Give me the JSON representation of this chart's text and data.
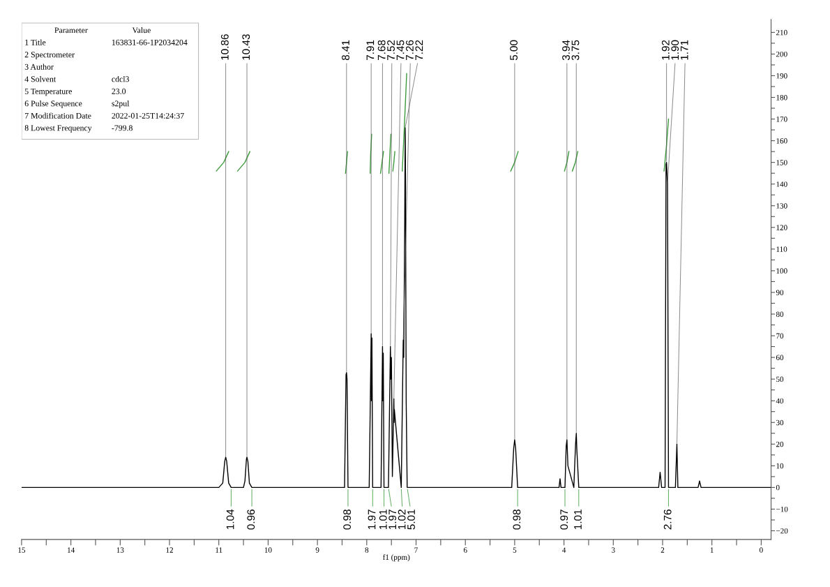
{
  "chart_data": {
    "type": "line",
    "xlabel": "f1 (ppm)",
    "xlim": [
      15,
      -0.2
    ],
    "ylim": [
      -24,
      216
    ],
    "xticks": [
      15,
      14,
      13,
      12,
      11,
      10,
      9,
      8,
      7,
      6,
      5,
      4,
      3,
      2,
      1,
      0,
      {
        "value": 14.5,
        "label": null
      },
      {
        "value": 13.5,
        "label": null
      },
      {
        "value": 12.5,
        "label": null
      },
      {
        "value": 11.5,
        "label": null
      },
      {
        "value": 10.5,
        "label": null
      },
      {
        "value": 9.5,
        "label": null
      },
      {
        "value": 8.5,
        "label": null
      },
      {
        "value": 7.5,
        "label": null
      },
      {
        "value": 6.5,
        "label": null
      },
      {
        "value": 5.5,
        "label": null
      },
      {
        "value": 4.5,
        "label": null
      },
      {
        "value": 3.5,
        "label": null
      },
      {
        "value": 2.5,
        "label": null
      },
      {
        "value": 1.5,
        "label": null
      },
      {
        "value": 0.5,
        "label": null
      }
    ],
    "yticks": [
      {
        "value": -20,
        "label": "−20"
      },
      {
        "value": -10,
        "label": "−10"
      },
      0,
      10,
      20,
      30,
      40,
      50,
      60,
      70,
      80,
      90,
      100,
      110,
      120,
      130,
      140,
      150,
      160,
      170,
      180,
      190,
      200,
      210,
      {
        "value": -15,
        "label": null
      },
      {
        "value": -5,
        "label": null
      },
      {
        "value": 5,
        "label": null
      },
      {
        "value": 15,
        "label": null
      },
      {
        "value": 25,
        "label": null
      },
      {
        "value": 35,
        "label": null
      },
      {
        "value": 45,
        "label": null
      },
      {
        "value": 55,
        "label": null
      },
      {
        "value": 65,
        "label": null
      },
      {
        "value": 75,
        "label": null
      },
      {
        "value": 85,
        "label": null
      },
      {
        "value": 95,
        "label": null
      },
      {
        "value": 105,
        "label": null
      },
      {
        "value": 115,
        "label": null
      },
      {
        "value": 125,
        "label": null
      },
      {
        "value": 135,
        "label": null
      },
      {
        "value": 145,
        "label": null
      },
      {
        "value": 155,
        "label": null
      },
      {
        "value": 165,
        "label": null
      },
      {
        "value": 175,
        "label": null
      },
      {
        "value": 185,
        "label": null
      },
      {
        "value": 195,
        "label": null
      },
      {
        "value": 205,
        "label": null
      }
    ],
    "grid": false,
    "legend": false,
    "series": [
      {
        "color": "#000000",
        "x": [
          15.0,
          11.0,
          10.92,
          10.88,
          10.86,
          10.84,
          10.8,
          10.75,
          10.5,
          10.47,
          10.44,
          10.43,
          10.41,
          10.38,
          10.33,
          8.45,
          8.42,
          8.41,
          8.4,
          8.38,
          7.95,
          7.91,
          7.905,
          7.895,
          7.88,
          7.71,
          7.68,
          7.675,
          7.665,
          7.65,
          7.56,
          7.52,
          7.51,
          7.5,
          7.48,
          7.45,
          7.445,
          7.44,
          7.3,
          7.26,
          7.25,
          7.23,
          7.22,
          7.215,
          7.2,
          7.18,
          5.06,
          5.02,
          5.0,
          4.98,
          4.94,
          4.1,
          4.08,
          4.06,
          3.98,
          3.955,
          3.94,
          3.92,
          3.8,
          3.765,
          3.75,
          3.74,
          3.7,
          2.08,
          2.05,
          2.02,
          1.95,
          1.93,
          1.92,
          1.9,
          1.88,
          1.74,
          1.71,
          1.69,
          1.28,
          1.25,
          1.22,
          -0.2
        ],
        "values": [
          0,
          0,
          2,
          12,
          14,
          12,
          2,
          0,
          0,
          3,
          13,
          14,
          12,
          2,
          0,
          0,
          52,
          53,
          50,
          0,
          0,
          71,
          40,
          69,
          0,
          0,
          65,
          40,
          62,
          0,
          0,
          65,
          50,
          60,
          5,
          41,
          30,
          36,
          0,
          68,
          60,
          120,
          166,
          150,
          40,
          0,
          0,
          18,
          22,
          18,
          0,
          0,
          4,
          0,
          0,
          19,
          22,
          10,
          0,
          20,
          25,
          18,
          0,
          0,
          7,
          0,
          0,
          149,
          150,
          140,
          0,
          0,
          20,
          0,
          0,
          3,
          0,
          0
        ]
      },
      {
        "color": "#3c9a3c",
        "x": [
          11.05,
          10.9,
          10.8,
          null,
          10.62,
          10.47,
          10.37,
          null,
          8.43,
          8.41,
          8.39,
          null,
          7.93,
          7.92,
          7.9,
          null,
          7.72,
          7.69,
          7.66,
          null,
          7.55,
          7.53,
          7.51,
          null,
          7.47,
          7.45,
          7.43,
          null,
          7.28,
          7.24,
          7.19,
          null,
          5.08,
          5.0,
          4.93,
          null,
          3.99,
          3.94,
          3.9,
          null,
          3.83,
          3.77,
          3.72,
          null,
          1.97,
          1.92,
          1.88
        ],
        "values": [
          146,
          150,
          155,
          null,
          146,
          150,
          155,
          null,
          145,
          150,
          155,
          null,
          145,
          154,
          163,
          null,
          145,
          150,
          155,
          null,
          145,
          154,
          163,
          null,
          146,
          150,
          155,
          null,
          146,
          165,
          191,
          null,
          146,
          150,
          155,
          null,
          146,
          150,
          155,
          null,
          146,
          150,
          155,
          null,
          146,
          158,
          170
        ]
      }
    ],
    "annotations": [
      "Parameter\tValue",
      "1 Title\t163831-66-1P2034204",
      "2 Spectrometer",
      "3 Author",
      "4 Solvent\tcdcl3",
      "5 Temperature\t23.0",
      "6 Pulse Sequence\ts2pul",
      "7 Modification Date\t2022-01-25T14:24:37",
      "8 Lowest Frequency\t-799.8",
      {
        "text": "10.86",
        "x": 10.86,
        "y": 14
      },
      {
        "text": "10.43",
        "x": 10.43,
        "y": 14
      },
      {
        "text": "8.41",
        "x": 8.41,
        "y": 53
      },
      {
        "text": "7.91",
        "x": 7.91,
        "y": 71
      },
      {
        "text": "7.68",
        "x": 7.68,
        "y": 65
      },
      {
        "text": "7.52",
        "x": 7.52,
        "y": 65
      },
      {
        "text": "7.45",
        "x": 7.45,
        "y": 41
      },
      {
        "text": "7.26",
        "x": 7.26,
        "y": 68
      },
      {
        "text": "7.22",
        "x": 7.22,
        "y": 166
      },
      {
        "text": "5.00",
        "x": 5.0,
        "y": 22
      },
      {
        "text": "3.94",
        "x": 3.94,
        "y": 22
      },
      {
        "text": "3.75",
        "x": 3.75,
        "y": 25
      },
      {
        "text": "1.92",
        "x": 1.92,
        "y": 150
      },
      {
        "text": "1.90",
        "x": 1.9,
        "y": 140
      },
      {
        "text": "1.71",
        "x": 1.71,
        "y": 20
      },
      {
        "text": "1.04",
        "x": 10.75,
        "y": 0
      },
      {
        "text": "0.96",
        "x": 10.33,
        "y": 0
      },
      {
        "text": "0.98",
        "x": 8.38,
        "y": 0
      },
      {
        "text": "1.97",
        "x": 7.88,
        "y": 0
      },
      {
        "text": "1.01",
        "x": 7.65,
        "y": 0
      },
      {
        "text": "1.97",
        "x": 7.56,
        "y": 0
      },
      {
        "text": "1.02",
        "x": 7.3,
        "y": 0
      },
      {
        "text": "5.01",
        "x": 7.18,
        "y": 0
      },
      {
        "text": "0.98",
        "x": 4.94,
        "y": 0
      },
      {
        "text": "0.97",
        "x": 3.98,
        "y": 0
      },
      {
        "text": "1.01",
        "x": 3.7,
        "y": 0
      },
      {
        "text": "2.76",
        "x": 1.88,
        "y": 0
      }
    ]
  }
}
